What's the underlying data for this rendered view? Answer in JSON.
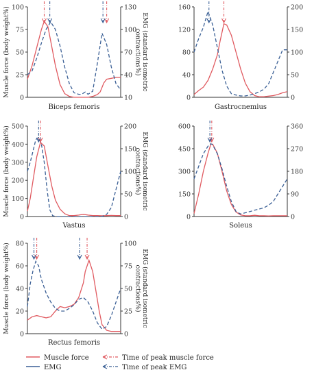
{
  "figure": {
    "colors": {
      "muscle_force": "#e05a60",
      "emg": "#3a5f95",
      "axis": "#333333"
    },
    "legend": {
      "muscle_force": "Muscle force",
      "emg": "EMG",
      "peak_force": "Time of peak muscle force",
      "peak_emg": "Time of peak EMG"
    }
  },
  "chart_data": [
    {
      "type": "line",
      "title": "Biceps femoris",
      "ylabel": "Muscle force (body weight%)",
      "y2label": "EMG (standard isometric contractions%)",
      "ylim": [
        0,
        100
      ],
      "yticks": [
        0,
        25,
        50,
        75,
        100
      ],
      "y2lim": [
        10,
        130
      ],
      "y2ticks": [
        10,
        40,
        70,
        100,
        130
      ],
      "grid": false,
      "series": [
        {
          "name": "Muscle force",
          "axis": "left",
          "x": [
            0,
            5,
            10,
            15,
            18,
            22,
            25,
            30,
            35,
            40,
            45,
            50,
            55,
            60,
            65,
            70,
            75,
            78,
            82,
            85,
            90,
            95,
            100
          ],
          "y": [
            20,
            35,
            55,
            75,
            84,
            78,
            62,
            35,
            14,
            4,
            1,
            0,
            0,
            0,
            0,
            1,
            3,
            6,
            16,
            20,
            21,
            22,
            22
          ]
        },
        {
          "name": "EMG",
          "axis": "right",
          "x": [
            0,
            5,
            10,
            15,
            20,
            25,
            30,
            35,
            40,
            45,
            50,
            55,
            58,
            62,
            65,
            70,
            75,
            80,
            85,
            90,
            95,
            100
          ],
          "y": [
            40,
            45,
            62,
            82,
            100,
            110,
            100,
            78,
            50,
            28,
            16,
            14,
            14,
            17,
            14,
            18,
            55,
            95,
            80,
            50,
            28,
            20
          ]
        }
      ],
      "peak_force_x": 18,
      "peak_emg_x": 24,
      "peak_force_x2": 85,
      "peak_emg_x2": 81
    },
    {
      "type": "line",
      "title": "Gastrocnemius",
      "ylabel": "",
      "y2label": "",
      "ylim": [
        0,
        160
      ],
      "yticks": [
        0,
        40,
        80,
        120,
        160
      ],
      "y2lim": [
        0,
        200
      ],
      "y2ticks": [
        0,
        50,
        100,
        150,
        200
      ],
      "grid": false,
      "series": [
        {
          "name": "Muscle force",
          "axis": "left",
          "x": [
            0,
            5,
            10,
            15,
            20,
            25,
            28,
            32,
            35,
            40,
            45,
            50,
            55,
            60,
            65,
            70,
            75,
            80,
            85,
            90,
            95,
            100
          ],
          "y": [
            5,
            12,
            18,
            30,
            50,
            75,
            100,
            130,
            128,
            110,
            80,
            50,
            25,
            10,
            3,
            1,
            1,
            2,
            3,
            5,
            8,
            10
          ]
        },
        {
          "name": "EMG",
          "axis": "right",
          "x": [
            0,
            5,
            10,
            15,
            20,
            25,
            30,
            35,
            40,
            45,
            50,
            55,
            60,
            65,
            70,
            75,
            80,
            85,
            90,
            95,
            100
          ],
          "y": [
            100,
            130,
            155,
            190,
            160,
            110,
            60,
            25,
            8,
            5,
            3,
            3,
            5,
            8,
            12,
            18,
            30,
            55,
            80,
            105,
            105
          ]
        }
      ],
      "peak_force_x": 32,
      "peak_emg_x": 16
    },
    {
      "type": "line",
      "title": "Vastus",
      "ylabel": "Muscle force (body weight%)",
      "y2label": "EMG (standard isometric contractions%)",
      "ylim": [
        0,
        500
      ],
      "yticks": [
        0,
        100,
        200,
        300,
        400,
        500
      ],
      "y2lim": [
        0,
        200
      ],
      "y2ticks": [
        0,
        50,
        100,
        150,
        200
      ],
      "grid": false,
      "series": [
        {
          "name": "Muscle force",
          "axis": "left",
          "x": [
            0,
            3,
            6,
            10,
            14,
            18,
            22,
            26,
            30,
            35,
            40,
            45,
            50,
            55,
            60,
            65,
            70,
            75,
            80,
            85,
            90,
            95,
            100
          ],
          "y": [
            30,
            100,
            200,
            330,
            410,
            390,
            280,
            170,
            90,
            40,
            15,
            5,
            5,
            8,
            12,
            8,
            5,
            5,
            4,
            5,
            6,
            5,
            5
          ]
        },
        {
          "name": "EMG",
          "axis": "right",
          "x": [
            0,
            3,
            6,
            9,
            12,
            15,
            18,
            21,
            24,
            27,
            30,
            35,
            40,
            50,
            60,
            70,
            80,
            85,
            90,
            95,
            100
          ],
          "y": [
            100,
            120,
            145,
            170,
            175,
            160,
            120,
            60,
            15,
            2,
            0,
            0,
            0,
            0,
            0,
            0,
            0,
            5,
            20,
            60,
            100
          ]
        }
      ],
      "peak_force_x": 14,
      "peak_emg_x": 12
    },
    {
      "type": "line",
      "title": "Soleus",
      "ylabel": "",
      "y2label": "",
      "ylim": [
        0,
        600
      ],
      "yticks": [
        0,
        150,
        300,
        450,
        600
      ],
      "y2lim": [
        0,
        360
      ],
      "y2ticks": [
        0,
        90,
        180,
        270,
        360
      ],
      "grid": false,
      "series": [
        {
          "name": "Muscle force",
          "axis": "left",
          "x": [
            0,
            5,
            10,
            15,
            18,
            20,
            25,
            30,
            35,
            40,
            45,
            50,
            55,
            60,
            65,
            70,
            75,
            80,
            85,
            90,
            95,
            100
          ],
          "y": [
            20,
            150,
            300,
            420,
            480,
            480,
            420,
            300,
            170,
            80,
            30,
            10,
            5,
            5,
            8,
            5,
            5,
            4,
            5,
            5,
            5,
            5
          ]
        },
        {
          "name": "EMG",
          "axis": "right",
          "x": [
            0,
            5,
            10,
            15,
            18,
            20,
            25,
            30,
            35,
            40,
            45,
            50,
            55,
            60,
            65,
            70,
            75,
            80,
            85,
            90,
            95,
            100
          ],
          "y": [
            150,
            200,
            250,
            280,
            290,
            285,
            250,
            190,
            120,
            60,
            20,
            10,
            15,
            20,
            25,
            30,
            35,
            45,
            60,
            90,
            120,
            150
          ]
        }
      ],
      "peak_force_x": 19,
      "peak_emg_x": 17
    },
    {
      "type": "line",
      "title": "Rectus femoris",
      "ylabel": "Muscle force (body weight%)",
      "y2label": "EMG (standard isometric contractions%)",
      "ylim": [
        0,
        80
      ],
      "yticks": [
        0,
        20,
        40,
        60,
        80
      ],
      "y2lim": [
        0,
        100
      ],
      "y2ticks": [
        0,
        25,
        50,
        75,
        100
      ],
      "grid": false,
      "series": [
        {
          "name": "Muscle force",
          "axis": "left",
          "x": [
            0,
            5,
            10,
            15,
            20,
            25,
            30,
            35,
            40,
            45,
            50,
            55,
            60,
            62,
            66,
            70,
            73,
            77,
            80,
            85,
            90,
            95,
            100
          ],
          "y": [
            12,
            15,
            16,
            15,
            14,
            15,
            20,
            24,
            23,
            24,
            26,
            32,
            45,
            55,
            65,
            55,
            40,
            20,
            8,
            3,
            2,
            2,
            2
          ]
        },
        {
          "name": "EMG",
          "axis": "right",
          "x": [
            0,
            3,
            6,
            9,
            12,
            15,
            20,
            25,
            30,
            35,
            40,
            45,
            50,
            55,
            60,
            65,
            70,
            75,
            80,
            85,
            90,
            95,
            100
          ],
          "y": [
            30,
            55,
            70,
            80,
            75,
            60,
            45,
            35,
            28,
            25,
            25,
            28,
            32,
            38,
            40,
            35,
            25,
            12,
            5,
            8,
            20,
            35,
            50
          ]
        }
      ],
      "peak_force_x": 64,
      "peak_emg_x": 56,
      "peak_force_x2": 10,
      "peak_emg_x2": 7
    }
  ]
}
